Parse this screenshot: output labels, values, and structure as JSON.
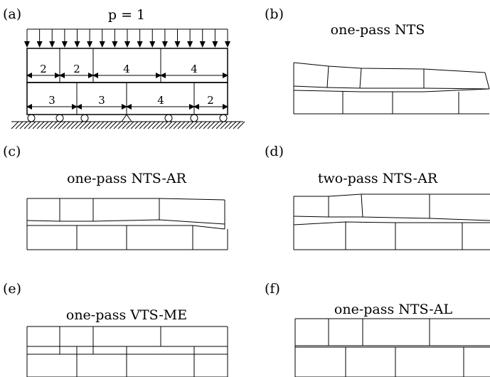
{
  "panels": [
    {
      "id": "a",
      "label": "(a)"
    },
    {
      "id": "b",
      "label": "(b)",
      "title": "one-pass NTS"
    },
    {
      "id": "c",
      "label": "(c)",
      "title": "one-pass NTS-AR"
    },
    {
      "id": "d",
      "label": "(d)",
      "title": "two-pass NTS-AR"
    },
    {
      "id": "e",
      "label": "(e)",
      "title": "one-pass VTS-ME"
    },
    {
      "id": "f",
      "label": "(f)",
      "title": "one-pass NTS-AL"
    }
  ],
  "load": {
    "label": "p = 1"
  },
  "top_layer_widths": [
    "2",
    "2",
    "4",
    "4"
  ],
  "bottom_layer_widths": [
    "3",
    "3",
    "4",
    "2"
  ]
}
